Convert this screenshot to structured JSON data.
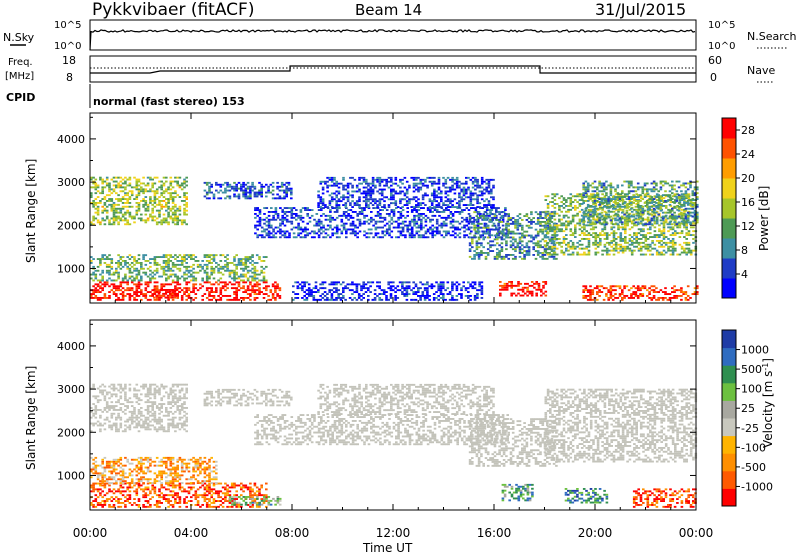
{
  "header": {
    "radar": "Pykkvibaer (fitACF)",
    "beam": "Beam 14",
    "date": "31/Jul/2015"
  },
  "status": {
    "nsky_label": "N.Sky",
    "nsky_ticks": [
      "10^5",
      "10^0"
    ],
    "nsearch_label": "N.Search",
    "nsearch_ticks": [
      "10^5",
      "10^0"
    ],
    "freq_label_1": "Freq.",
    "freq_label_2": "[MHz]",
    "freq_ticks": [
      "18",
      "8"
    ],
    "nave_label": "Nave",
    "nave_ticks": [
      "60",
      "0"
    ],
    "cpid_label": "CPID",
    "cpid_text": "normal (fast stereo) 153"
  },
  "colors": {
    "power_scale": [
      "#0000ff",
      "#1f3cc6",
      "#3d8fa3",
      "#4e9a55",
      "#a6c52a",
      "#f0d21b",
      "#ff9d00",
      "#ff5200",
      "#ff0000"
    ],
    "velocity_scale": [
      "#ff0000",
      "#ff5a00",
      "#ff8f00",
      "#ffb400",
      "#c8c8be",
      "#a8a8a0",
      "#6cc040",
      "#2f8f50",
      "#2f6cc0",
      "#1f3ca6"
    ],
    "gray_scatter": "#c3c3ba"
  },
  "chart_data": [
    {
      "type": "heatmap",
      "panel": "power",
      "ylabel": "Slant Range [km]",
      "xlabel": "Time UT",
      "x_ticks": [
        "00:00",
        "04:00",
        "08:00",
        "12:00",
        "16:00",
        "20:00",
        "00:00"
      ],
      "y_ticks": [
        "1000",
        "2000",
        "3000",
        "4000"
      ],
      "ylim": [
        200,
        4600
      ],
      "x_range_hours": [
        0,
        24
      ],
      "colorbar": {
        "label": "Power [dB]",
        "ticks": [
          "4",
          "8",
          "12",
          "16",
          "20",
          "24",
          "28"
        ],
        "range": [
          0,
          30
        ]
      },
      "scatter_regions": [
        {
          "t0": 0.0,
          "t1": 3.8,
          "r0": 2000,
          "r1": 3100,
          "level": 0.5
        },
        {
          "t0": 0.0,
          "t1": 7.5,
          "r0": 250,
          "r1": 700,
          "level": 0.95
        },
        {
          "t0": 0.0,
          "t1": 7.0,
          "r0": 700,
          "r1": 1300,
          "level": 0.4
        },
        {
          "t0": 2.5,
          "t1": 3.5,
          "r0": 300,
          "r1": 500,
          "level": 1.0
        },
        {
          "t0": 4.5,
          "t1": 8.0,
          "r0": 2600,
          "r1": 3000,
          "level": 0.2
        },
        {
          "t0": 6.5,
          "t1": 16.5,
          "r0": 1700,
          "r1": 2400,
          "level": 0.15
        },
        {
          "t0": 9.0,
          "t1": 16.0,
          "r0": 2400,
          "r1": 3100,
          "level": 0.15
        },
        {
          "t0": 8.0,
          "t1": 15.5,
          "r0": 250,
          "r1": 700,
          "level": 0.1
        },
        {
          "t0": 15.0,
          "t1": 18.5,
          "r0": 1200,
          "r1": 2300,
          "level": 0.3
        },
        {
          "t0": 16.2,
          "t1": 18.0,
          "r0": 350,
          "r1": 700,
          "level": 0.95
        },
        {
          "t0": 18.0,
          "t1": 24.0,
          "r0": 1300,
          "r1": 2700,
          "level": 0.45
        },
        {
          "t0": 19.5,
          "t1": 24.0,
          "r0": 2000,
          "r1": 3000,
          "level": 0.35
        },
        {
          "t0": 19.5,
          "t1": 24.0,
          "r0": 250,
          "r1": 600,
          "level": 0.9
        }
      ]
    },
    {
      "type": "heatmap",
      "panel": "velocity",
      "ylabel": "Slant Range [km]",
      "xlabel": "Time UT",
      "x_ticks": [
        "00:00",
        "04:00",
        "08:00",
        "12:00",
        "16:00",
        "20:00",
        "00:00"
      ],
      "y_ticks": [
        "1000",
        "2000",
        "3000",
        "4000"
      ],
      "ylim": [
        200,
        4600
      ],
      "x_range_hours": [
        0,
        24
      ],
      "colorbar": {
        "label": "Velocity [m s^-1]",
        "ticks": [
          "1000",
          "500",
          "100",
          "25",
          "-25",
          "-100",
          "-500",
          "-1000"
        ]
      },
      "scatter_regions": [
        {
          "t0": 0.0,
          "t1": 3.8,
          "r0": 2000,
          "r1": 3100,
          "level": 0.45
        },
        {
          "t0": 0.0,
          "t1": 7.0,
          "r0": 250,
          "r1": 800,
          "level": 0.15
        },
        {
          "t0": 0.0,
          "t1": 5.0,
          "r0": 800,
          "r1": 1400,
          "level": 0.3
        },
        {
          "t0": 5.5,
          "t1": 7.5,
          "r0": 300,
          "r1": 500,
          "level": 0.65
        },
        {
          "t0": 4.5,
          "t1": 8.0,
          "r0": 2600,
          "r1": 3000,
          "level": 0.5
        },
        {
          "t0": 6.5,
          "t1": 16.5,
          "r0": 1700,
          "r1": 2400,
          "level": 0.5
        },
        {
          "t0": 9.0,
          "t1": 16.0,
          "r0": 2400,
          "r1": 3100,
          "level": 0.5
        },
        {
          "t0": 15.0,
          "t1": 18.5,
          "r0": 1200,
          "r1": 2300,
          "level": 0.5
        },
        {
          "t0": 16.3,
          "t1": 17.5,
          "r0": 400,
          "r1": 800,
          "level": 0.7
        },
        {
          "t0": 18.8,
          "t1": 20.5,
          "r0": 350,
          "r1": 700,
          "level": 0.8
        },
        {
          "t0": 18.0,
          "t1": 24.0,
          "r0": 1300,
          "r1": 3000,
          "level": 0.5
        },
        {
          "t0": 21.5,
          "t1": 24.0,
          "r0": 250,
          "r1": 700,
          "level": 0.1
        }
      ]
    }
  ]
}
